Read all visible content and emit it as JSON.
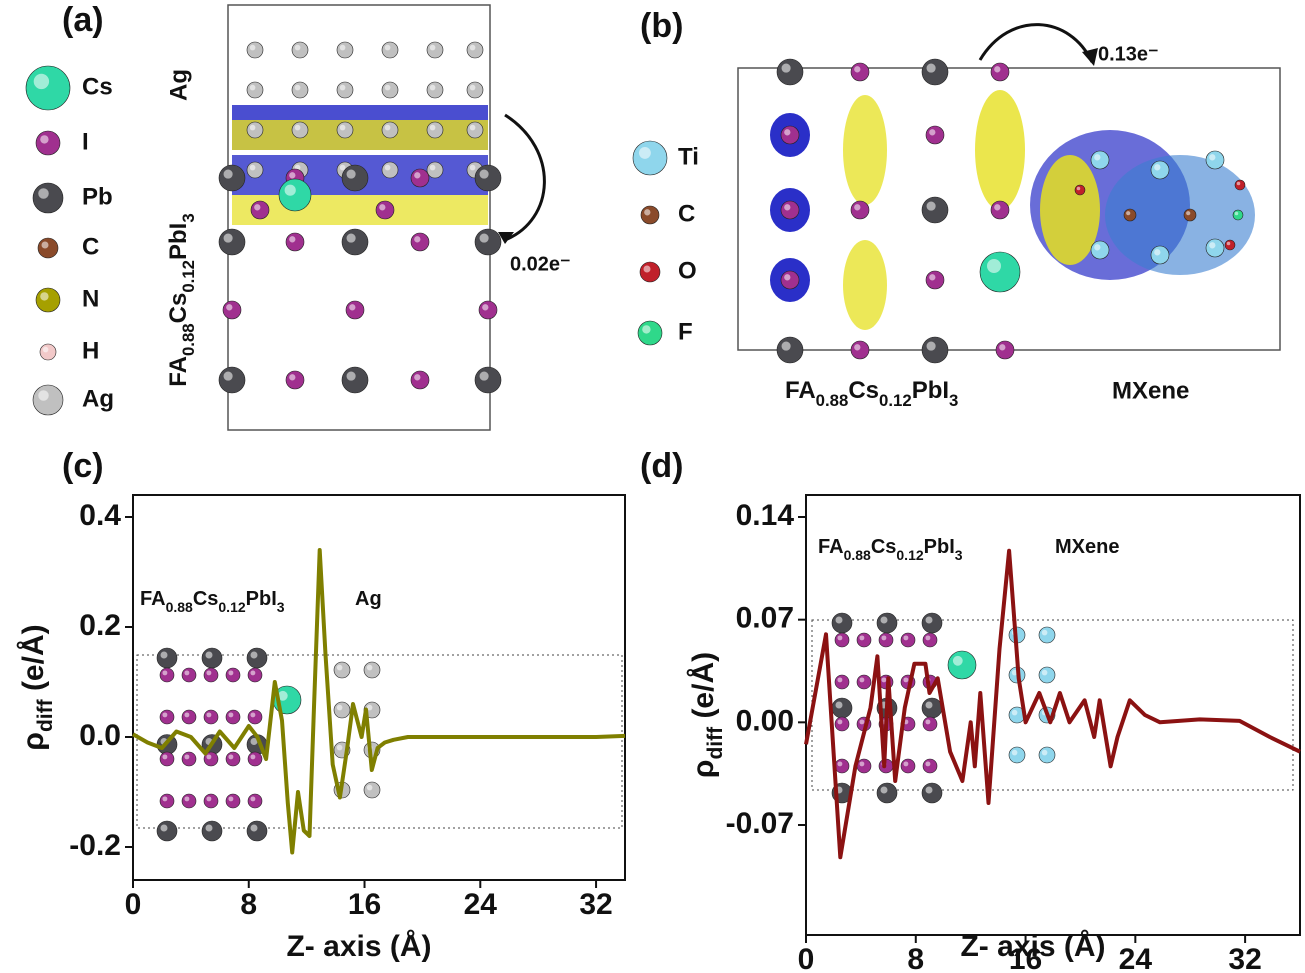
{
  "panel_a": {
    "label": "(a)",
    "legend": [
      {
        "name": "Cs",
        "color": "#2fd8a6"
      },
      {
        "name": "I",
        "color": "#a0308f"
      },
      {
        "name": "Pb",
        "color": "#4a4a4f"
      },
      {
        "name": "C",
        "color": "#8a4a2a"
      },
      {
        "name": "N",
        "color": "#a6a000"
      },
      {
        "name": "H",
        "color": "#f2c9c9"
      },
      {
        "name": "Ag",
        "color": "#c0c0c0"
      }
    ],
    "top_label": "Ag",
    "bottom_label": [
      "FA",
      "0.88",
      "Cs",
      "0.12",
      "PbI",
      "3"
    ],
    "transfer": "0.02e⁻"
  },
  "panel_b": {
    "label": "(b)",
    "legend": [
      {
        "name": "Ti",
        "color": "#8fd6ec"
      },
      {
        "name": "C",
        "color": "#8a4a2a"
      },
      {
        "name": "O",
        "color": "#c0202a"
      },
      {
        "name": "F",
        "color": "#2fd88a"
      }
    ],
    "left_label": [
      "FA",
      "0.88",
      "Cs",
      "0.12",
      "PbI",
      "3"
    ],
    "right_label": "MXene",
    "transfer": "0.13e⁻"
  },
  "chart_data": [
    {
      "type": "line",
      "label": "(c)",
      "xlabel": "Z- axis (Å)",
      "ylabel": [
        "ρ",
        "diff",
        " (e/Å)"
      ],
      "annotations": [
        [
          "FA",
          "0.88",
          "Cs",
          "0.12",
          "PbI",
          "3"
        ],
        [
          "Ag"
        ]
      ],
      "color": "#7f7f00",
      "xlim": [
        0,
        34
      ],
      "xticks": [
        0,
        8,
        16,
        24,
        32
      ],
      "ylim": [
        -0.26,
        0.44
      ],
      "yticks": [
        -0.2,
        {
          "value": 0,
          "label": "0.0"
        },
        0.2,
        0.4
      ],
      "x": [
        0,
        1,
        2,
        3,
        4,
        5,
        6,
        7,
        8,
        8.6,
        9.2,
        9.8,
        10.3,
        10.7,
        11.0,
        11.4,
        11.8,
        12.2,
        12.5,
        12.9,
        13.3,
        13.8,
        14.3,
        14.8,
        15.2,
        15.5,
        15.8,
        16.1,
        16.5,
        16.9,
        17.4,
        18,
        19,
        21,
        24,
        28,
        32,
        34
      ],
      "values": [
        0.005,
        -0.01,
        -0.02,
        0.01,
        0.0,
        -0.03,
        0.01,
        -0.02,
        0.02,
        0.0,
        -0.04,
        0.1,
        0.03,
        -0.12,
        -0.21,
        -0.1,
        -0.17,
        -0.18,
        0.05,
        0.34,
        0.15,
        -0.05,
        -0.11,
        -0.02,
        0.06,
        0.03,
        0.0,
        0.05,
        -0.06,
        -0.02,
        -0.01,
        -0.005,
        0.0,
        0.0,
        0.0,
        0.0,
        0.0,
        0.002
      ]
    },
    {
      "type": "line",
      "label": "(d)",
      "xlabel": "Z- axis (Å)",
      "ylabel": [
        "ρ",
        "diff",
        " (e/Å)"
      ],
      "annotations": [
        [
          "FA",
          "0.88",
          "Cs",
          "0.12",
          "PbI",
          "3"
        ],
        [
          "MXene"
        ]
      ],
      "color": "#8b1212",
      "xlim": [
        0,
        36
      ],
      "xticks": [
        0,
        8,
        16,
        24,
        32
      ],
      "ylim": [
        -0.145,
        0.155
      ],
      "yticks": [
        -0.07,
        {
          "value": 0,
          "label": "0.00"
        },
        0.07,
        0.14
      ],
      "x": [
        0,
        1.46,
        2.5,
        3.6,
        4.7,
        5.2,
        5.7,
        6.0,
        6.5,
        7.2,
        7.9,
        8.7,
        9.0,
        9.6,
        10.5,
        11.4,
        12.0,
        12.3,
        12.7,
        13.3,
        14.1,
        14.8,
        15.5,
        16.0,
        17.0,
        17.8,
        18.5,
        19.2,
        20.3,
        21.0,
        21.4,
        22.2,
        22.7,
        23.6,
        24.7,
        25.8,
        28.7,
        31.6,
        33.8,
        36
      ],
      "values": [
        -0.015,
        0.06,
        -0.092,
        -0.03,
        0.01,
        0.045,
        -0.03,
        0.03,
        -0.04,
        0.01,
        0.04,
        0.04,
        0.02,
        0.03,
        -0.02,
        -0.04,
        0.0,
        -0.03,
        0.02,
        -0.055,
        0.05,
        0.117,
        0.03,
        0.0,
        0.02,
        0.0,
        0.02,
        0.0,
        0.015,
        -0.01,
        0.015,
        -0.03,
        -0.01,
        0.015,
        0.005,
        0.0,
        0.002,
        0.001,
        -0.01,
        -0.02
      ]
    }
  ]
}
